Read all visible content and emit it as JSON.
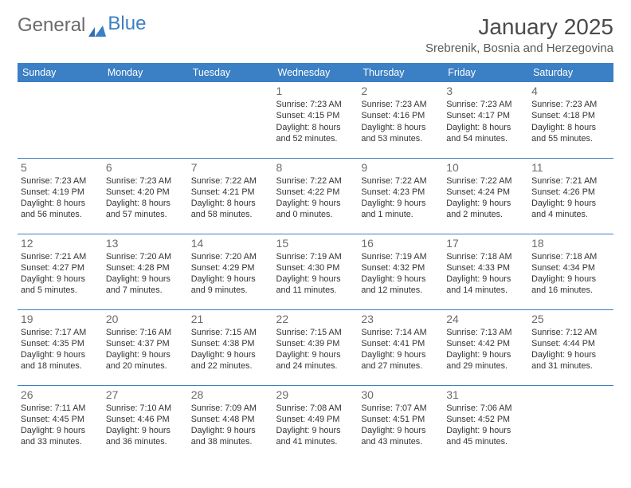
{
  "logo": {
    "word1": "General",
    "word2": "Blue"
  },
  "month_title": "January 2025",
  "location": "Srebrenik, Bosnia and Herzegovina",
  "day_headers": [
    "Sunday",
    "Monday",
    "Tuesday",
    "Wednesday",
    "Thursday",
    "Friday",
    "Saturday"
  ],
  "colors": {
    "header_bg": "#3b7fc4",
    "header_text": "#ffffff",
    "rule": "#3b7fc4",
    "body_text": "#333333",
    "daynum": "#6b6b6b",
    "logo_grey": "#6b6b6b",
    "logo_blue": "#3b7fc4"
  },
  "weeks": [
    [
      null,
      null,
      null,
      {
        "n": "1",
        "sr": "Sunrise: 7:23 AM",
        "ss": "Sunset: 4:15 PM",
        "dl1": "Daylight: 8 hours",
        "dl2": "and 52 minutes."
      },
      {
        "n": "2",
        "sr": "Sunrise: 7:23 AM",
        "ss": "Sunset: 4:16 PM",
        "dl1": "Daylight: 8 hours",
        "dl2": "and 53 minutes."
      },
      {
        "n": "3",
        "sr": "Sunrise: 7:23 AM",
        "ss": "Sunset: 4:17 PM",
        "dl1": "Daylight: 8 hours",
        "dl2": "and 54 minutes."
      },
      {
        "n": "4",
        "sr": "Sunrise: 7:23 AM",
        "ss": "Sunset: 4:18 PM",
        "dl1": "Daylight: 8 hours",
        "dl2": "and 55 minutes."
      }
    ],
    [
      {
        "n": "5",
        "sr": "Sunrise: 7:23 AM",
        "ss": "Sunset: 4:19 PM",
        "dl1": "Daylight: 8 hours",
        "dl2": "and 56 minutes."
      },
      {
        "n": "6",
        "sr": "Sunrise: 7:23 AM",
        "ss": "Sunset: 4:20 PM",
        "dl1": "Daylight: 8 hours",
        "dl2": "and 57 minutes."
      },
      {
        "n": "7",
        "sr": "Sunrise: 7:22 AM",
        "ss": "Sunset: 4:21 PM",
        "dl1": "Daylight: 8 hours",
        "dl2": "and 58 minutes."
      },
      {
        "n": "8",
        "sr": "Sunrise: 7:22 AM",
        "ss": "Sunset: 4:22 PM",
        "dl1": "Daylight: 9 hours",
        "dl2": "and 0 minutes."
      },
      {
        "n": "9",
        "sr": "Sunrise: 7:22 AM",
        "ss": "Sunset: 4:23 PM",
        "dl1": "Daylight: 9 hours",
        "dl2": "and 1 minute."
      },
      {
        "n": "10",
        "sr": "Sunrise: 7:22 AM",
        "ss": "Sunset: 4:24 PM",
        "dl1": "Daylight: 9 hours",
        "dl2": "and 2 minutes."
      },
      {
        "n": "11",
        "sr": "Sunrise: 7:21 AM",
        "ss": "Sunset: 4:26 PM",
        "dl1": "Daylight: 9 hours",
        "dl2": "and 4 minutes."
      }
    ],
    [
      {
        "n": "12",
        "sr": "Sunrise: 7:21 AM",
        "ss": "Sunset: 4:27 PM",
        "dl1": "Daylight: 9 hours",
        "dl2": "and 5 minutes."
      },
      {
        "n": "13",
        "sr": "Sunrise: 7:20 AM",
        "ss": "Sunset: 4:28 PM",
        "dl1": "Daylight: 9 hours",
        "dl2": "and 7 minutes."
      },
      {
        "n": "14",
        "sr": "Sunrise: 7:20 AM",
        "ss": "Sunset: 4:29 PM",
        "dl1": "Daylight: 9 hours",
        "dl2": "and 9 minutes."
      },
      {
        "n": "15",
        "sr": "Sunrise: 7:19 AM",
        "ss": "Sunset: 4:30 PM",
        "dl1": "Daylight: 9 hours",
        "dl2": "and 11 minutes."
      },
      {
        "n": "16",
        "sr": "Sunrise: 7:19 AM",
        "ss": "Sunset: 4:32 PM",
        "dl1": "Daylight: 9 hours",
        "dl2": "and 12 minutes."
      },
      {
        "n": "17",
        "sr": "Sunrise: 7:18 AM",
        "ss": "Sunset: 4:33 PM",
        "dl1": "Daylight: 9 hours",
        "dl2": "and 14 minutes."
      },
      {
        "n": "18",
        "sr": "Sunrise: 7:18 AM",
        "ss": "Sunset: 4:34 PM",
        "dl1": "Daylight: 9 hours",
        "dl2": "and 16 minutes."
      }
    ],
    [
      {
        "n": "19",
        "sr": "Sunrise: 7:17 AM",
        "ss": "Sunset: 4:35 PM",
        "dl1": "Daylight: 9 hours",
        "dl2": "and 18 minutes."
      },
      {
        "n": "20",
        "sr": "Sunrise: 7:16 AM",
        "ss": "Sunset: 4:37 PM",
        "dl1": "Daylight: 9 hours",
        "dl2": "and 20 minutes."
      },
      {
        "n": "21",
        "sr": "Sunrise: 7:15 AM",
        "ss": "Sunset: 4:38 PM",
        "dl1": "Daylight: 9 hours",
        "dl2": "and 22 minutes."
      },
      {
        "n": "22",
        "sr": "Sunrise: 7:15 AM",
        "ss": "Sunset: 4:39 PM",
        "dl1": "Daylight: 9 hours",
        "dl2": "and 24 minutes."
      },
      {
        "n": "23",
        "sr": "Sunrise: 7:14 AM",
        "ss": "Sunset: 4:41 PM",
        "dl1": "Daylight: 9 hours",
        "dl2": "and 27 minutes."
      },
      {
        "n": "24",
        "sr": "Sunrise: 7:13 AM",
        "ss": "Sunset: 4:42 PM",
        "dl1": "Daylight: 9 hours",
        "dl2": "and 29 minutes."
      },
      {
        "n": "25",
        "sr": "Sunrise: 7:12 AM",
        "ss": "Sunset: 4:44 PM",
        "dl1": "Daylight: 9 hours",
        "dl2": "and 31 minutes."
      }
    ],
    [
      {
        "n": "26",
        "sr": "Sunrise: 7:11 AM",
        "ss": "Sunset: 4:45 PM",
        "dl1": "Daylight: 9 hours",
        "dl2": "and 33 minutes."
      },
      {
        "n": "27",
        "sr": "Sunrise: 7:10 AM",
        "ss": "Sunset: 4:46 PM",
        "dl1": "Daylight: 9 hours",
        "dl2": "and 36 minutes."
      },
      {
        "n": "28",
        "sr": "Sunrise: 7:09 AM",
        "ss": "Sunset: 4:48 PM",
        "dl1": "Daylight: 9 hours",
        "dl2": "and 38 minutes."
      },
      {
        "n": "29",
        "sr": "Sunrise: 7:08 AM",
        "ss": "Sunset: 4:49 PM",
        "dl1": "Daylight: 9 hours",
        "dl2": "and 41 minutes."
      },
      {
        "n": "30",
        "sr": "Sunrise: 7:07 AM",
        "ss": "Sunset: 4:51 PM",
        "dl1": "Daylight: 9 hours",
        "dl2": "and 43 minutes."
      },
      {
        "n": "31",
        "sr": "Sunrise: 7:06 AM",
        "ss": "Sunset: 4:52 PM",
        "dl1": "Daylight: 9 hours",
        "dl2": "and 45 minutes."
      },
      null
    ]
  ]
}
